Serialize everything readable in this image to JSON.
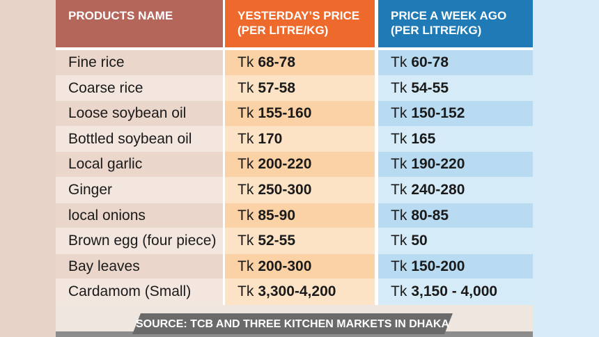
{
  "table": {
    "columns": [
      {
        "label": "PRODUCTS NAME"
      },
      {
        "label": "YESTERDAY’S PRICE",
        "sub": "(PER LITRE/KG)"
      },
      {
        "label": "PRICE A WEEK AGO",
        "sub": "(PER LITRE/KG)"
      }
    ],
    "rows": [
      {
        "product": "Fine rice",
        "yesterday": {
          "unit": "Tk",
          "amount": "68-78"
        },
        "week_ago": {
          "unit": "Tk",
          "amount": "60-78"
        }
      },
      {
        "product": "Coarse rice",
        "yesterday": {
          "unit": "Tk",
          "amount": "57-58"
        },
        "week_ago": {
          "unit": "Tk",
          "amount": "54-55"
        }
      },
      {
        "product": "Loose soybean oil",
        "yesterday": {
          "unit": "Tk",
          "amount": "155-160"
        },
        "week_ago": {
          "unit": "Tk",
          "amount": "150-152"
        }
      },
      {
        "product": "Bottled soybean oil",
        "yesterday": {
          "unit": "Tk",
          "amount": "170"
        },
        "week_ago": {
          "unit": "Tk",
          "amount": "165"
        }
      },
      {
        "product": "Local garlic",
        "yesterday": {
          "unit": "Tk",
          "amount": "200-220"
        },
        "week_ago": {
          "unit": "Tk",
          "amount": "190-220"
        }
      },
      {
        "product": "Ginger",
        "yesterday": {
          "unit": "Tk",
          "amount": "250-300"
        },
        "week_ago": {
          "unit": "Tk",
          "amount": "240-280"
        }
      },
      {
        "product": "local onions",
        "yesterday": {
          "unit": "Tk",
          "amount": "85-90"
        },
        "week_ago": {
          "unit": "Tk",
          "amount": "80-85"
        }
      },
      {
        "product": "Brown egg (four piece)",
        "yesterday": {
          "unit": "Tk",
          "amount": "52-55"
        },
        "week_ago": {
          "unit": "Tk",
          "amount": "50"
        }
      },
      {
        "product": "Bay leaves",
        "yesterday": {
          "unit": "Tk",
          "amount": "200-300"
        },
        "week_ago": {
          "unit": "Tk",
          "amount": "150-200"
        }
      },
      {
        "product": "Cardamom (Small)",
        "yesterday": {
          "unit": "Tk",
          "amount": "3,300-4,200"
        },
        "week_ago": {
          "unit": "Tk",
          "amount": "3,150 - 4,000"
        }
      }
    ],
    "source": "SOURCE: TCB AND THREE KITCHEN MARKETS IN DHAKA"
  }
}
